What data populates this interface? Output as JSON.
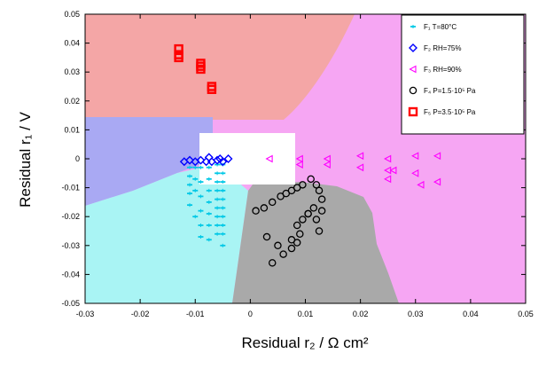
{
  "chart_data": {
    "type": "scatter",
    "xlabel": "Residual r₂ / Ω cm²",
    "ylabel": "Residual r₁ / V",
    "xlim": [
      -0.03,
      0.05
    ],
    "ylim": [
      -0.05,
      0.05
    ],
    "x_ticks": [
      "-0.03",
      "-0.02",
      "-0.01",
      "0",
      "0.01",
      "0.02",
      "0.03",
      "0.04",
      "0.05"
    ],
    "x_tick_values": [
      -0.03,
      -0.02,
      -0.01,
      0,
      0.01,
      0.02,
      0.03,
      0.04,
      0.05
    ],
    "y_ticks": [
      "0.05",
      "0.04",
      "0.03",
      "0.02",
      "0.01",
      "0",
      "-0.01",
      "-0.02",
      "-0.03",
      "-0.04",
      "-0.05"
    ],
    "y_tick_values": [
      0.05,
      0.04,
      0.03,
      0.02,
      0.01,
      0,
      -0.01,
      -0.02,
      -0.03,
      -0.04,
      -0.05
    ],
    "legend_position": "top-right",
    "region_colors": {
      "pink": "#f4a6a6",
      "magenta": "#f6a6f3",
      "blue": "#a9a9f3",
      "cyan": "#a9f4f4",
      "gray": "#a9a9a9",
      "white": "#ffffff"
    },
    "series": [
      {
        "name": "F₁ T=80°C",
        "marker": "dash",
        "color": "#00c8e6",
        "x": [
          -0.011,
          -0.011,
          -0.011,
          -0.011,
          -0.011,
          -0.01,
          -0.01,
          -0.01,
          -0.01,
          -0.009,
          -0.009,
          -0.009,
          -0.009,
          -0.009,
          -0.009,
          -0.0075,
          -0.0075,
          -0.0075,
          -0.0075,
          -0.0075,
          -0.0075,
          -0.0075,
          -0.006,
          -0.006,
          -0.006,
          -0.006,
          -0.006,
          -0.006,
          -0.006,
          -0.006,
          -0.006,
          -0.005,
          -0.005,
          -0.005,
          -0.005,
          -0.005,
          -0.005,
          -0.005,
          -0.005,
          -0.005,
          -0.005
        ],
        "y": [
          -0.003,
          -0.006,
          -0.009,
          -0.012,
          -0.016,
          -0.003,
          -0.007,
          -0.011,
          -0.02,
          -0.003,
          -0.008,
          -0.013,
          -0.018,
          -0.023,
          -0.027,
          -0.003,
          -0.007,
          -0.011,
          -0.015,
          -0.019,
          -0.023,
          -0.028,
          -0.002,
          -0.005,
          -0.008,
          -0.011,
          -0.014,
          -0.017,
          -0.02,
          -0.023,
          -0.026,
          -0.002,
          -0.005,
          -0.008,
          -0.011,
          -0.014,
          -0.017,
          -0.02,
          -0.023,
          -0.026,
          -0.03
        ]
      },
      {
        "name": "F₂ RH=75%",
        "marker": "diamond",
        "color": "#0000ff",
        "x": [
          -0.012,
          -0.011,
          -0.01,
          -0.009,
          -0.008,
          -0.0075,
          -0.007,
          -0.006,
          -0.0055,
          -0.005,
          -0.004
        ],
        "y": [
          -0.001,
          -0.0005,
          -0.001,
          -0.0005,
          -0.001,
          0.0005,
          -0.001,
          -0.0005,
          0.0,
          -0.001,
          0.0
        ]
      },
      {
        "name": "F₃ RH=90%",
        "marker": "triangle",
        "color": "#ff00ff",
        "x": [
          0.0035,
          0.009,
          0.009,
          0.014,
          0.014,
          0.02,
          0.02,
          0.025,
          0.025,
          0.025,
          0.026,
          0.03,
          0.03,
          0.031,
          0.034,
          0.034
        ],
        "y": [
          0.0,
          0.0,
          -0.002,
          0.0,
          -0.002,
          0.001,
          -0.003,
          0.0,
          -0.004,
          -0.007,
          -0.004,
          0.001,
          -0.005,
          -0.009,
          0.001,
          -0.008
        ]
      },
      {
        "name": "F₄ P=1.5·10⁵ Pa",
        "marker": "circle",
        "color": "#000000",
        "x": [
          0.001,
          0.0025,
          0.004,
          0.0055,
          0.0065,
          0.0075,
          0.0085,
          0.0095,
          0.011,
          0.012,
          0.0125,
          0.013,
          0.0115,
          0.0105,
          0.0095,
          0.0085,
          0.012,
          0.0105,
          0.009,
          0.0075,
          0.005,
          0.003,
          0.004,
          0.006,
          0.0075,
          0.0085,
          0.0125,
          0.013
        ],
        "y": [
          -0.018,
          -0.017,
          -0.015,
          -0.013,
          -0.012,
          -0.011,
          -0.01,
          -0.009,
          -0.007,
          -0.009,
          -0.011,
          -0.014,
          -0.017,
          -0.019,
          -0.021,
          -0.023,
          -0.021,
          -0.019,
          -0.026,
          -0.028,
          -0.03,
          -0.027,
          -0.036,
          -0.033,
          -0.031,
          -0.029,
          -0.025,
          -0.018
        ]
      },
      {
        "name": "F₅ P=3.5·10⁵ Pa",
        "marker": "square",
        "color": "#ff0000",
        "x": [
          -0.013,
          -0.013,
          -0.013,
          -0.009,
          -0.009,
          -0.009,
          -0.007,
          -0.007
        ],
        "y": [
          0.038,
          0.036,
          0.035,
          0.033,
          0.031,
          0.032,
          0.025,
          0.024
        ]
      }
    ]
  }
}
